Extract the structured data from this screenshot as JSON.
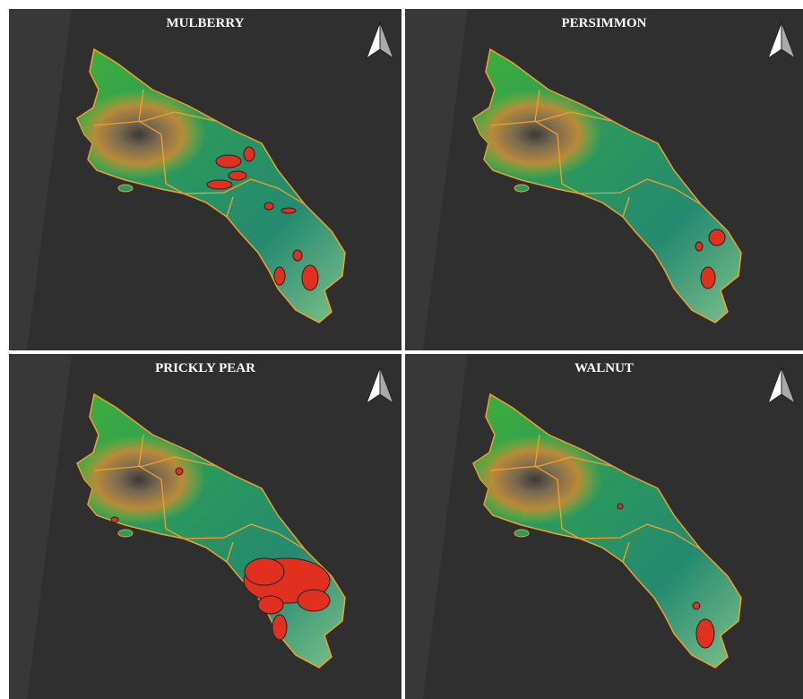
{
  "panels": [
    {
      "title": "MULBERRY"
    },
    {
      "title": "PERSIMMON"
    },
    {
      "title": "PRICKLY PEAR"
    },
    {
      "title": "WALNUT"
    }
  ]
}
